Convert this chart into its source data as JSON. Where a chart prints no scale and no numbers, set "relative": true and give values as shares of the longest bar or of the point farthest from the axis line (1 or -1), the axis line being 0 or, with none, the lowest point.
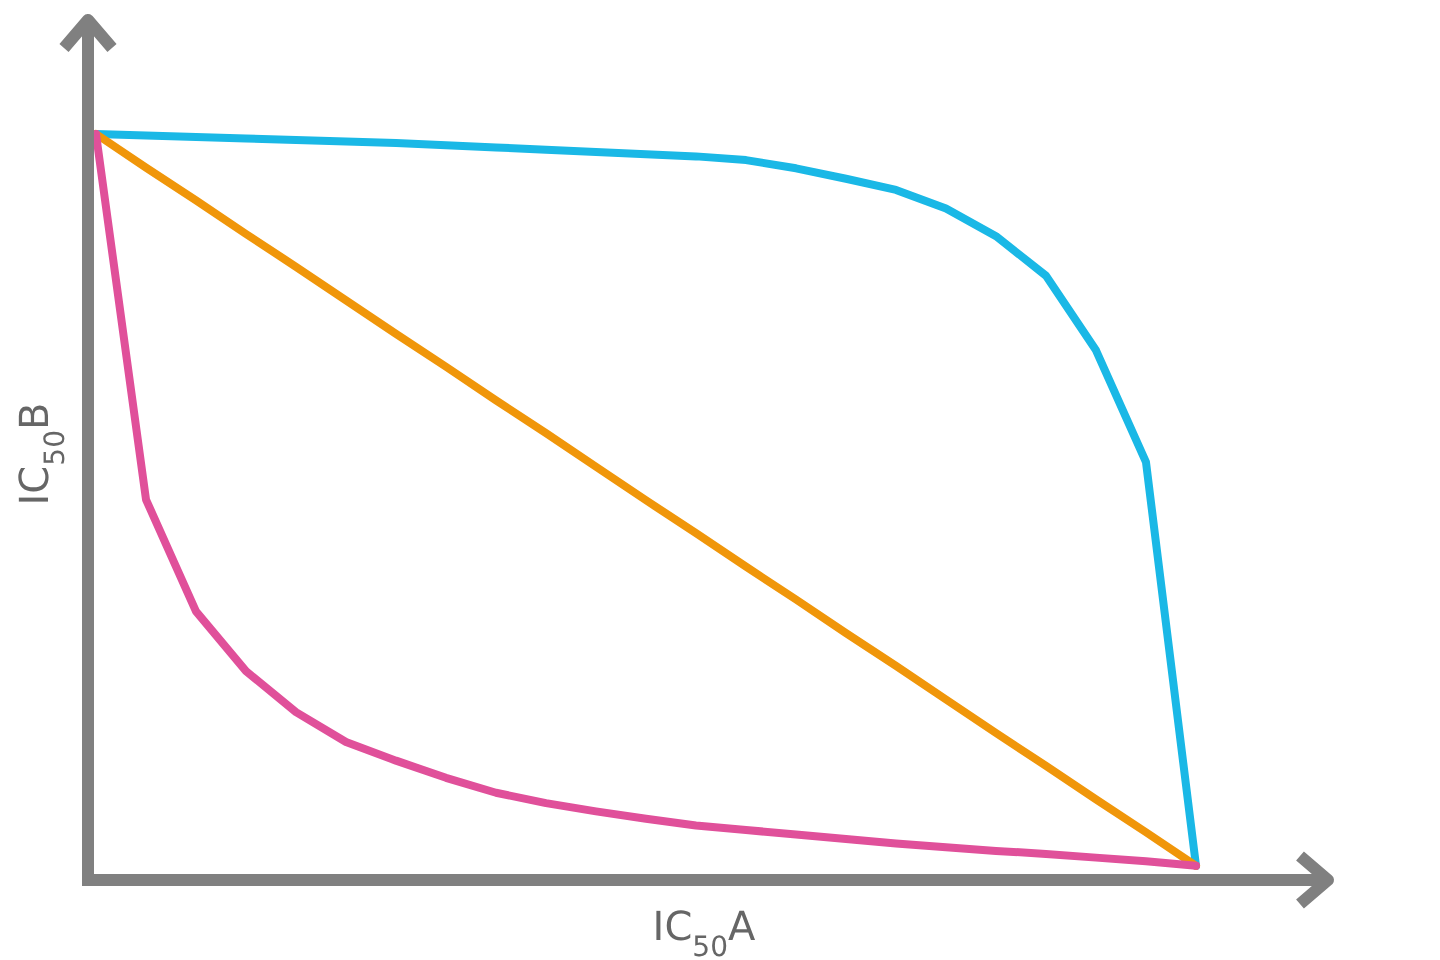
{
  "chart_data": {
    "type": "line",
    "relative": true,
    "xlabel": "IC$_{50}$A",
    "ylabel": "IC$_{50}$B",
    "line_style": "solid",
    "categories": [
      null,
      null,
      null,
      null,
      null,
      null,
      null,
      null,
      null,
      null,
      null,
      null,
      null,
      null,
      null,
      null,
      null,
      null,
      null,
      null,
      null,
      null,
      null
    ],
    "series": [
      {
        "color": "#1ab8e6",
        "values": [
          1,
          0.998,
          0.996,
          0.994,
          0.992,
          0.99,
          0.988,
          0.985,
          0.982,
          0.979,
          0.976,
          0.973,
          0.97,
          0.965,
          0.954,
          0.94,
          0.925,
          0.9,
          0.863,
          0.81,
          0.71,
          0.56,
          0.019
        ]
      },
      {
        "color": "#f0960a",
        "values": [
          1,
          0.955,
          0.911,
          0.866,
          0.822,
          0.777,
          0.732,
          0.688,
          0.643,
          0.599,
          0.554,
          0.509,
          0.465,
          0.42,
          0.376,
          0.331,
          0.287,
          0.242,
          0.197,
          0.153,
          0.108,
          0.064,
          0.019
        ]
      },
      {
        "color": "#e0509a",
        "values": [
          1,
          0.51,
          0.36,
          0.28,
          0.225,
          0.185,
          0.16,
          0.137,
          0.117,
          0.103,
          0.092,
          0.082,
          0.073,
          0.067,
          0.061,
          0.055,
          0.049,
          0.044,
          0.039,
          0.035,
          0.03,
          0.025,
          0.019
        ]
      }
    ]
  }
}
